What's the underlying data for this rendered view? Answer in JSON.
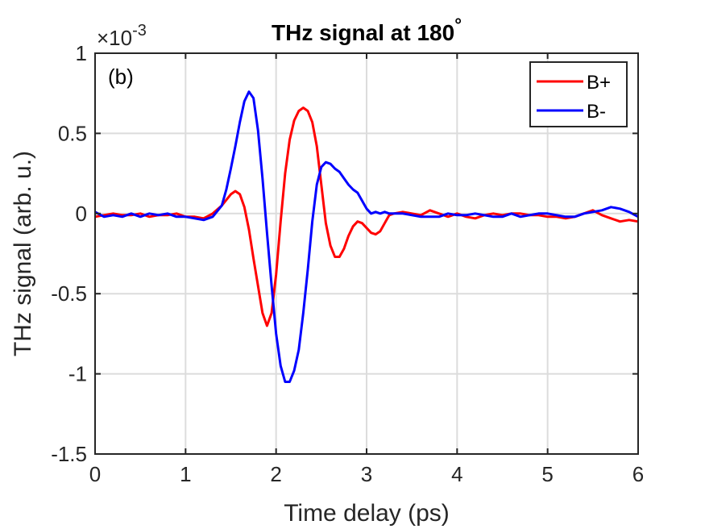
{
  "chart_data": {
    "type": "line",
    "title": "THz signal at 180",
    "title_superscript": "°",
    "xlabel": "Time delay (ps)",
    "ylabel": "THz signal (arb. u.)",
    "y_exponent_base": "×10",
    "y_exponent_power": "-3",
    "panel_label": "(b)",
    "xlim": [
      0,
      6
    ],
    "ylim": [
      -1.5,
      1
    ],
    "xticks": [
      0,
      1,
      2,
      3,
      4,
      5,
      6
    ],
    "xtick_labels": [
      "0",
      "1",
      "2",
      "3",
      "4",
      "5",
      "6"
    ],
    "yticks": [
      -1.5,
      -1,
      -0.5,
      0,
      0.5,
      1
    ],
    "ytick_labels": [
      "-1.5",
      "-1",
      "-0.5",
      "0",
      "0.5",
      "1"
    ],
    "grid": true,
    "legend_position": "top-right",
    "series": [
      {
        "name": "B+",
        "color": "#ff0000",
        "x": [
          0.0,
          0.1,
          0.2,
          0.3,
          0.4,
          0.5,
          0.6,
          0.7,
          0.8,
          0.9,
          1.0,
          1.1,
          1.2,
          1.3,
          1.4,
          1.5,
          1.55,
          1.6,
          1.65,
          1.7,
          1.75,
          1.8,
          1.85,
          1.9,
          1.95,
          2.0,
          2.05,
          2.1,
          2.15,
          2.2,
          2.25,
          2.3,
          2.35,
          2.4,
          2.45,
          2.5,
          2.55,
          2.6,
          2.65,
          2.7,
          2.75,
          2.8,
          2.85,
          2.9,
          2.95,
          3.0,
          3.05,
          3.1,
          3.15,
          3.2,
          3.25,
          3.3,
          3.4,
          3.5,
          3.6,
          3.7,
          3.8,
          3.9,
          4.0,
          4.1,
          4.2,
          4.3,
          4.4,
          4.5,
          4.6,
          4.7,
          4.8,
          4.9,
          5.0,
          5.1,
          5.2,
          5.3,
          5.4,
          5.5,
          5.6,
          5.7,
          5.8,
          5.9,
          6.0
        ],
        "y": [
          -0.02,
          -0.01,
          0.0,
          -0.01,
          -0.01,
          0.0,
          -0.02,
          -0.01,
          -0.01,
          0.0,
          -0.02,
          -0.02,
          -0.03,
          0.0,
          0.05,
          0.12,
          0.14,
          0.12,
          0.04,
          -0.1,
          -0.28,
          -0.45,
          -0.62,
          -0.7,
          -0.62,
          -0.38,
          -0.05,
          0.25,
          0.46,
          0.58,
          0.64,
          0.66,
          0.64,
          0.57,
          0.42,
          0.18,
          -0.06,
          -0.2,
          -0.27,
          -0.27,
          -0.22,
          -0.14,
          -0.08,
          -0.05,
          -0.06,
          -0.09,
          -0.12,
          -0.13,
          -0.11,
          -0.06,
          -0.01,
          0.0,
          0.01,
          0.0,
          -0.01,
          0.02,
          0.0,
          -0.02,
          0.0,
          -0.02,
          -0.03,
          -0.01,
          0.0,
          -0.01,
          0.0,
          0.0,
          -0.01,
          -0.01,
          -0.02,
          -0.02,
          -0.03,
          -0.02,
          0.0,
          0.02,
          -0.01,
          -0.03,
          -0.05,
          -0.04,
          -0.05
        ]
      },
      {
        "name": "B-",
        "color": "#0000ff",
        "x": [
          0.0,
          0.1,
          0.2,
          0.3,
          0.4,
          0.5,
          0.6,
          0.7,
          0.8,
          0.9,
          1.0,
          1.1,
          1.2,
          1.3,
          1.4,
          1.45,
          1.5,
          1.55,
          1.6,
          1.65,
          1.7,
          1.75,
          1.8,
          1.85,
          1.9,
          1.95,
          2.0,
          2.05,
          2.1,
          2.15,
          2.2,
          2.25,
          2.3,
          2.35,
          2.4,
          2.45,
          2.5,
          2.55,
          2.6,
          2.65,
          2.7,
          2.75,
          2.8,
          2.85,
          2.9,
          2.95,
          3.0,
          3.05,
          3.1,
          3.15,
          3.2,
          3.25,
          3.3,
          3.4,
          3.5,
          3.6,
          3.7,
          3.8,
          3.9,
          4.0,
          4.1,
          4.2,
          4.3,
          4.4,
          4.5,
          4.6,
          4.7,
          4.8,
          4.9,
          5.0,
          5.1,
          5.2,
          5.3,
          5.4,
          5.5,
          5.6,
          5.7,
          5.8,
          5.9,
          6.0
        ],
        "y": [
          0.01,
          -0.02,
          -0.01,
          -0.02,
          0.0,
          -0.02,
          0.0,
          -0.01,
          0.0,
          -0.02,
          -0.02,
          -0.03,
          -0.04,
          -0.02,
          0.05,
          0.15,
          0.28,
          0.42,
          0.57,
          0.7,
          0.76,
          0.72,
          0.52,
          0.22,
          -0.12,
          -0.45,
          -0.75,
          -0.95,
          -1.05,
          -1.05,
          -0.98,
          -0.85,
          -0.62,
          -0.35,
          -0.05,
          0.18,
          0.29,
          0.32,
          0.31,
          0.28,
          0.26,
          0.22,
          0.18,
          0.15,
          0.13,
          0.08,
          0.03,
          0.0,
          0.01,
          0.0,
          0.01,
          0.0,
          0.0,
          0.0,
          -0.01,
          -0.02,
          -0.02,
          -0.02,
          0.0,
          -0.01,
          -0.01,
          0.0,
          -0.01,
          -0.02,
          -0.02,
          0.0,
          -0.02,
          -0.01,
          0.0,
          0.0,
          -0.01,
          -0.02,
          -0.02,
          0.0,
          0.01,
          0.02,
          0.04,
          0.03,
          0.01,
          -0.02
        ]
      }
    ]
  }
}
